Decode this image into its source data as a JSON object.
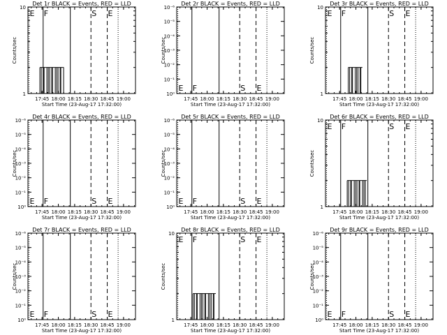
{
  "figure": {
    "xlabel": "Start Time (23-Aug-17 17:32:00)",
    "ylabel": "Counts/sec",
    "x_tick_labels": [
      "17:45",
      "18:00",
      "18:15",
      "18:30",
      "18:45",
      "19:00"
    ],
    "marker_labels": [
      "E",
      "F",
      "S",
      "E"
    ],
    "colors": {
      "events": "#000000",
      "background": "#ffffff"
    }
  },
  "chart_data": [
    {
      "type": "line",
      "title": "Det 1r BLACK = Events, RED = LLD",
      "scale": "linear",
      "ylim": [
        1,
        10
      ],
      "y_ticks": [
        "1",
        "10"
      ],
      "x_range": [
        "17:32",
        "19:11"
      ],
      "markers": [
        "17:33",
        "17:46",
        "18:11",
        "18:30",
        "18:45",
        "18:55"
      ],
      "series": [
        {
          "name": "Events",
          "points": [
            [
              "17:43",
              2
            ],
            [
              "18:02",
              2
            ],
            [
              "18:05",
              1
            ]
          ]
        }
      ]
    },
    {
      "type": "line",
      "title": "Det 2r BLACK = Events, RED = LLD",
      "scale": "log",
      "ylim": [
        1,
        1e-06
      ],
      "y_ticks": [
        "10⁰",
        "10⁻¹",
        "10⁻²",
        "10⁻³",
        "10⁻⁴",
        "10⁻⁵",
        "10⁻⁶"
      ],
      "x_range": [
        "17:32",
        "19:11"
      ],
      "markers": [
        "17:33",
        "17:46",
        "18:11",
        "18:30",
        "18:45",
        "18:55"
      ],
      "series": []
    },
    {
      "type": "line",
      "title": "Det 3r BLACK = Events, RED = LLD",
      "scale": "linear",
      "ylim": [
        1,
        10
      ],
      "y_ticks": [
        "1",
        "10"
      ],
      "x_range": [
        "17:32",
        "19:11"
      ],
      "markers": [
        "17:33",
        "17:46",
        "18:11",
        "18:30",
        "18:45",
        "18:55"
      ],
      "series": [
        {
          "name": "Events",
          "points": [
            [
              "17:53",
              2
            ],
            [
              "18:00",
              2
            ],
            [
              "18:03",
              2
            ],
            [
              "18:06",
              1
            ]
          ]
        }
      ]
    },
    {
      "type": "line",
      "title": "Det 4r BLACK = Events, RED = LLD",
      "scale": "log",
      "ylim": [
        1,
        1e-06
      ],
      "y_ticks": [
        "10⁰",
        "10⁻¹",
        "10⁻²",
        "10⁻³",
        "10⁻⁴",
        "10⁻⁵",
        "10⁻⁶"
      ],
      "x_range": [
        "17:32",
        "19:11"
      ],
      "markers": [
        "17:33",
        "17:46",
        "18:11",
        "18:30",
        "18:45",
        "18:55"
      ],
      "series": []
    },
    {
      "type": "line",
      "title": "Det 5r BLACK = Events, RED = LLD",
      "scale": "log",
      "ylim": [
        1,
        1e-06
      ],
      "y_ticks": [
        "10⁰",
        "10⁻¹",
        "10⁻²",
        "10⁻³",
        "10⁻⁴",
        "10⁻⁵",
        "10⁻⁶"
      ],
      "x_range": [
        "17:32",
        "19:11"
      ],
      "markers": [
        "17:33",
        "17:46",
        "18:11",
        "18:30",
        "18:45",
        "18:55"
      ],
      "series": []
    },
    {
      "type": "line",
      "title": "Det 6r BLACK = Events, RED = LLD",
      "scale": "linear",
      "ylim": [
        1,
        10
      ],
      "y_ticks": [
        "1",
        "10"
      ],
      "x_range": [
        "17:32",
        "19:11"
      ],
      "markers": [
        "17:33",
        "17:46",
        "18:11",
        "18:30",
        "18:45",
        "18:55"
      ],
      "series": [
        {
          "name": "Events",
          "points": [
            [
              "17:52",
              2
            ],
            [
              "17:59",
              2
            ],
            [
              "18:06",
              2
            ],
            [
              "18:10",
              1
            ]
          ]
        }
      ]
    },
    {
      "type": "line",
      "title": "Det 7r BLACK = Events, RED = LLD",
      "scale": "log",
      "ylim": [
        1,
        1e-06
      ],
      "y_ticks": [
        "10⁰",
        "10⁻¹",
        "10⁻²",
        "10⁻³",
        "10⁻⁴",
        "10⁻⁵",
        "10⁻⁶"
      ],
      "x_range": [
        "17:32",
        "19:11"
      ],
      "markers": [
        "17:33",
        "17:46",
        "18:11",
        "18:30",
        "18:45",
        "18:55"
      ],
      "series": []
    },
    {
      "type": "line",
      "title": "Det 8r BLACK = Events, RED = LLD",
      "scale": "linear",
      "ylim": [
        1,
        10
      ],
      "y_ticks": [
        "1",
        "10"
      ],
      "x_range": [
        "17:32",
        "19:11"
      ],
      "markers": [
        "17:33",
        "17:46",
        "18:11",
        "18:30",
        "18:45",
        "18:55"
      ],
      "series": [
        {
          "name": "Events",
          "points": [
            [
              "17:47",
              2
            ],
            [
              "17:55",
              2
            ],
            [
              "18:05",
              2
            ],
            [
              "18:08",
              1
            ]
          ]
        }
      ]
    },
    {
      "type": "line",
      "title": "Det 9r BLACK = Events, RED = LLD",
      "scale": "log",
      "ylim": [
        1,
        1e-06
      ],
      "y_ticks": [
        "10⁰",
        "10⁻¹",
        "10⁻²",
        "10⁻³",
        "10⁻⁴",
        "10⁻⁵",
        "10⁻⁶"
      ],
      "x_range": [
        "17:32",
        "19:11"
      ],
      "markers": [
        "17:33",
        "17:46",
        "18:11",
        "18:30",
        "18:45",
        "18:55"
      ],
      "series": []
    }
  ]
}
